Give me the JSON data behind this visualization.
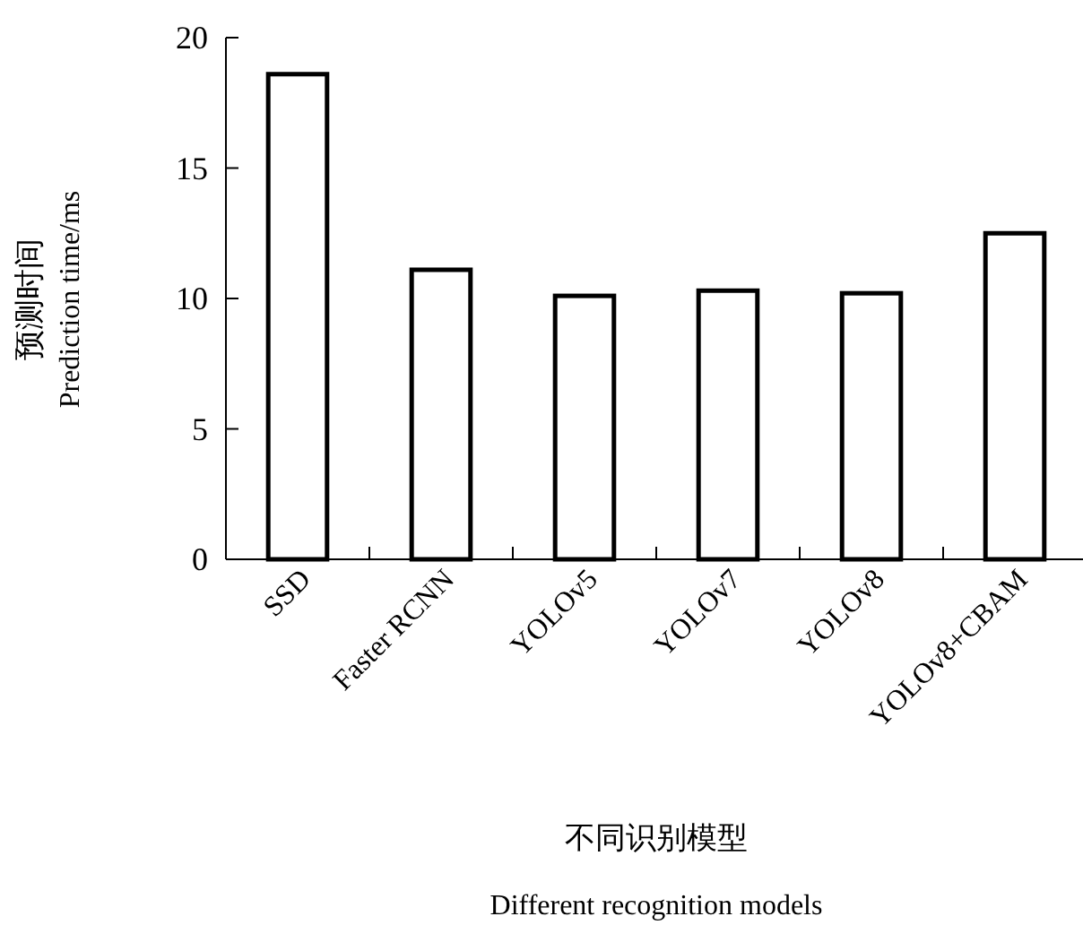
{
  "chart_data": {
    "type": "bar",
    "xlabel": "不同识别模型\nDifferent recognition models",
    "ylabel": "预测时间\nPrediction time/ms",
    "categories": [
      "SSD",
      "Faster RCNN",
      "YOLOv5",
      "YOLOv7",
      "YOLOv8",
      "YOLOv8+CBAM"
    ],
    "values": [
      18.6,
      11.1,
      10.1,
      10.3,
      10.2,
      12.5
    ],
    "color": "#ffffff",
    "ylim": [
      0,
      20
    ],
    "yticks": [
      0,
      5,
      10,
      15,
      20
    ]
  }
}
